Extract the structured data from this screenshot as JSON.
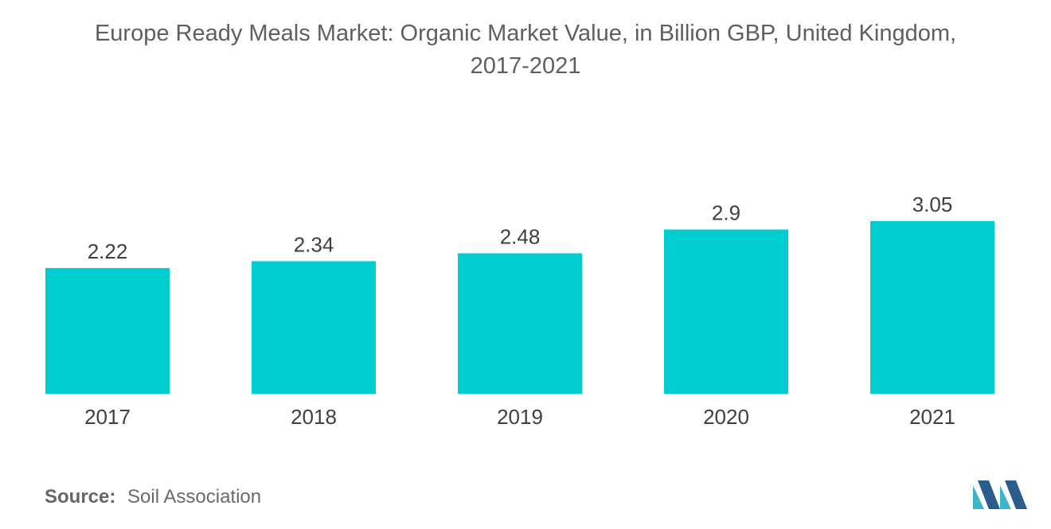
{
  "title_line1": "Europe Ready Meals Market: Organic Market Value, in Billion GBP, United Kingdom,",
  "title_line2": "2017-2021",
  "source": {
    "label": "Source:",
    "text": "Soil Association"
  },
  "colors": {
    "bar": "#00cdd0",
    "text": "#3f3f3f",
    "logo_dark": "#2a5c8c",
    "logo_light": "#3fb6c8"
  },
  "logo": {
    "icon": "mordor-intelligence-logo"
  },
  "chart_data": {
    "type": "bar",
    "title": "Europe Ready Meals Market: Organic Market Value, in Billion GBP, United Kingdom, 2017-2021",
    "categories": [
      "2017",
      "2018",
      "2019",
      "2020",
      "2021"
    ],
    "values": [
      2.22,
      2.34,
      2.48,
      2.9,
      3.05
    ],
    "value_labels": [
      "2.22",
      "2.34",
      "2.48",
      "2.9",
      "3.05"
    ],
    "xlabel": "",
    "ylabel": "",
    "ylim": [
      0,
      3.3
    ],
    "grid": false,
    "legend": "none"
  }
}
